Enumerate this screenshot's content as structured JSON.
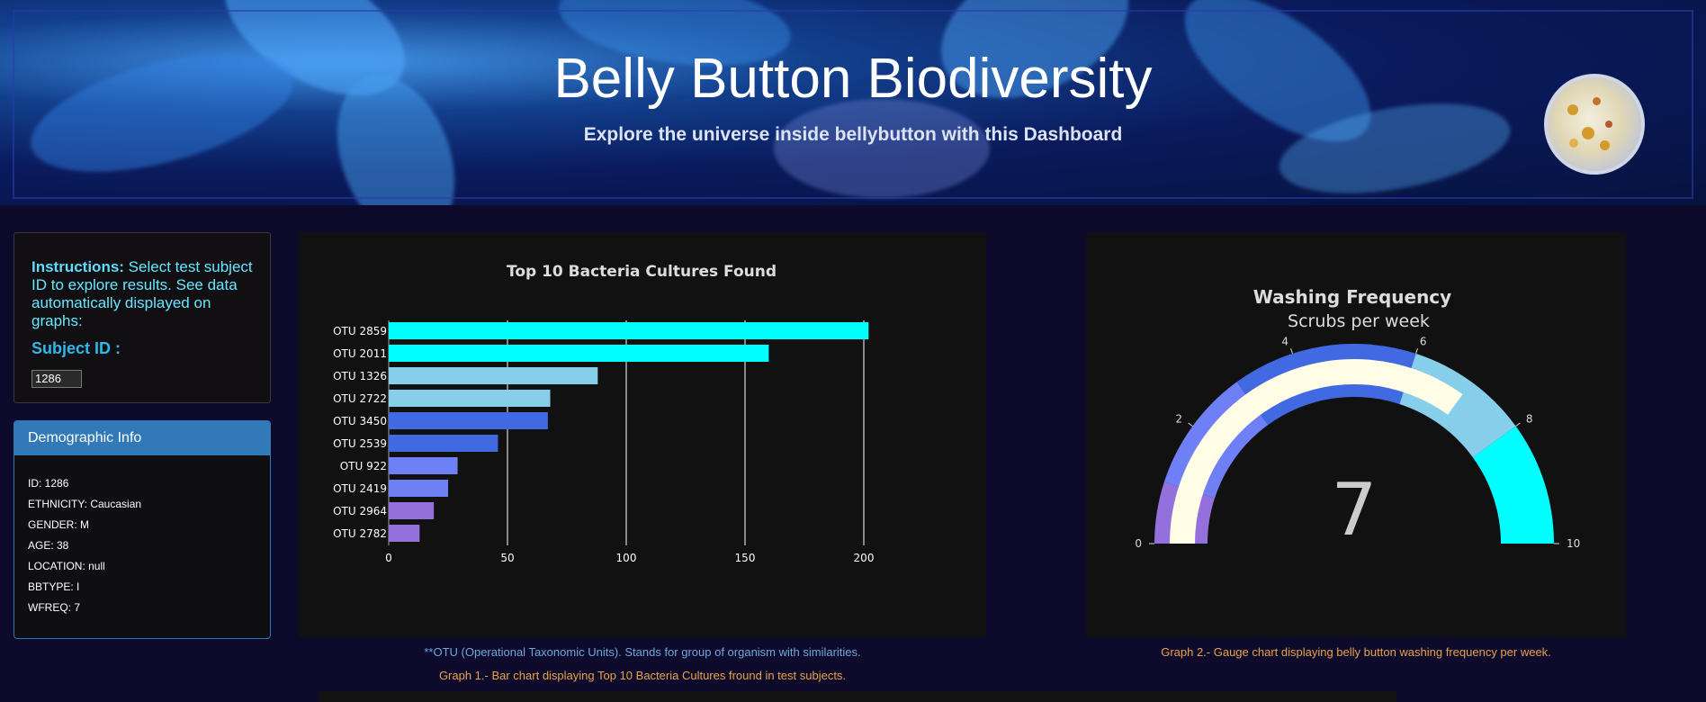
{
  "banner": {
    "title": "Belly Button Biodiversity",
    "subtitle": "Explore the universe inside bellybutton with this Dashboard"
  },
  "instructions": {
    "lead": "Instructions:",
    "text": " Select test subject ID to explore results. See data automatically displayed on graphs:",
    "subject_label": "Subject ID :",
    "subject_value": "1286"
  },
  "demographic": {
    "title": "Demographic Info",
    "rows": [
      "ID: 1286",
      "ETHNICITY: Caucasian",
      "GENDER: M",
      "AGE: 38",
      "LOCATION: null",
      "BBTYPE: I",
      "WFREQ: 7"
    ]
  },
  "captions": {
    "otu_note": "**OTU (Operational Taxonomic Units). Stands for group of organism with similarities.",
    "graph1": "Graph 1.- Bar chart displaying Top 10 Bacteria Cultures fround in test subjects.",
    "graph2": "Graph 2.- Gauge chart displaying belly button washing frequency per week."
  },
  "chart_data": [
    {
      "type": "bar",
      "orientation": "horizontal",
      "title": "Top 10 Bacteria Cultures Found",
      "categories": [
        "OTU 2859",
        "OTU 2011",
        "OTU 1326",
        "OTU 2722",
        "OTU 3450",
        "OTU 2539",
        "OTU 922",
        "OTU 2419",
        "OTU 2964",
        "OTU 2782"
      ],
      "values": [
        202,
        160,
        88,
        68,
        67,
        46,
        29,
        25,
        19,
        13
      ],
      "colors": [
        "#00ffff",
        "#00ffff",
        "#87ceeb",
        "#87ceeb",
        "#4169e1",
        "#4169e1",
        "#6f7ff5",
        "#6f7ff5",
        "#9370db",
        "#9370db"
      ],
      "xticks": [
        0,
        50,
        100,
        150,
        200
      ],
      "xlim": [
        0,
        210
      ],
      "grid": "vertical lines"
    },
    {
      "type": "gauge",
      "title": "Washing Frequency",
      "subtitle": "Scrubs per week",
      "value": 7,
      "range": [
        0,
        10
      ],
      "ticks": [
        0,
        2,
        4,
        6,
        8,
        10
      ],
      "steps": [
        {
          "range": [
            0,
            1
          ],
          "color": "#9370db"
        },
        {
          "range": [
            1,
            3
          ],
          "color": "#6f7ff5"
        },
        {
          "range": [
            3,
            6
          ],
          "color": "#4169e1"
        },
        {
          "range": [
            6,
            8
          ],
          "color": "#87ceeb"
        },
        {
          "range": [
            8,
            10
          ],
          "color": "#00ffff"
        }
      ],
      "bar_color": "#fffde6"
    }
  ],
  "colors": {
    "page_bg": "#0d0a2b",
    "panel_bg": "#111111",
    "accent_blue": "#3279b7",
    "caption_orange": "#e8a24a",
    "caption_blue": "#6fa8dc"
  }
}
